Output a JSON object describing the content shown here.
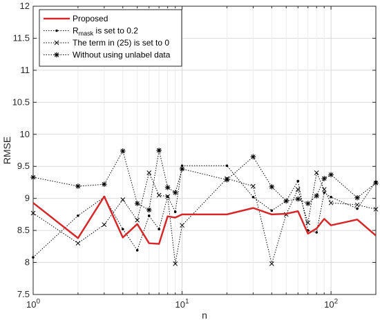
{
  "chart_data": {
    "type": "line",
    "xscale": "log",
    "xlim": [
      1,
      200
    ],
    "ylim": [
      7.5,
      12
    ],
    "xlabel": "n",
    "ylabel": "RMSE",
    "grid": true,
    "legend_position": "top-left",
    "xticks": [
      1,
      10,
      100
    ],
    "x_tick_labels": [
      {
        "base": "10",
        "exp": "0"
      },
      {
        "base": "10",
        "exp": "1"
      },
      {
        "base": "10",
        "exp": "2"
      }
    ],
    "yticks": [
      7.5,
      8,
      8.5,
      9,
      9.5,
      10,
      10.5,
      11,
      11.5,
      12
    ],
    "y_tick_labels": [
      "7.5",
      "8",
      "8.5",
      "9",
      "9.5",
      "10",
      "10.5",
      "11",
      "11.5",
      "12"
    ],
    "series": [
      {
        "name": "Proposed",
        "legend_parts": [
          {
            "text": "Proposed"
          }
        ],
        "color": "#d62728",
        "style": "solid",
        "marker": "none",
        "x": [
          1,
          2,
          3,
          4,
          5,
          6,
          7,
          8,
          9,
          10,
          20,
          30,
          40,
          50,
          60,
          70,
          80,
          90,
          100,
          150,
          200
        ],
        "y": [
          8.93,
          8.38,
          9.03,
          8.39,
          8.6,
          8.3,
          8.29,
          8.72,
          8.7,
          8.75,
          8.75,
          8.85,
          8.75,
          8.76,
          8.8,
          8.45,
          8.53,
          8.68,
          8.58,
          8.67,
          8.42
        ]
      },
      {
        "name": "R mask is set to 0.2",
        "legend_parts": [
          {
            "text": "R"
          },
          {
            "text": "mask",
            "sub": true
          },
          {
            "text": " is set to 0.2"
          }
        ],
        "color": "#000000",
        "style": "dotted",
        "marker": "dot",
        "x": [
          1,
          2,
          3,
          4,
          5,
          6,
          7,
          8,
          9,
          10,
          20,
          30,
          40,
          50,
          60,
          70,
          80,
          90,
          100,
          150,
          200
        ],
        "y": [
          8.08,
          8.73,
          9.02,
          8.52,
          8.19,
          8.73,
          8.52,
          9.03,
          8.79,
          9.51,
          9.51,
          9.02,
          8.81,
          8.96,
          9.27,
          8.5,
          8.47,
          9.09,
          9.02,
          8.84,
          9.26
        ]
      },
      {
        "name": "The term in (25) is set to 0",
        "legend_parts": [
          {
            "text": "The term in (25) is set to 0"
          }
        ],
        "color": "#000000",
        "style": "dotted",
        "marker": "x",
        "x": [
          1,
          2,
          3,
          4,
          5,
          6,
          7,
          8,
          9,
          10,
          20,
          30,
          40,
          50,
          60,
          70,
          80,
          90,
          100,
          150,
          200
        ],
        "y": [
          8.77,
          8.3,
          8.59,
          8.98,
          8.66,
          9.4,
          9.05,
          9.03,
          7.98,
          8.58,
          9.31,
          9.19,
          7.98,
          8.75,
          9.14,
          8.62,
          9.4,
          9.14,
          8.93,
          8.9,
          8.83
        ]
      },
      {
        "name": "Without using unlabel data",
        "legend_parts": [
          {
            "text": "Without using unlabel data"
          }
        ],
        "color": "#000000",
        "style": "dotted",
        "marker": "star",
        "x": [
          1,
          2,
          3,
          4,
          5,
          6,
          7,
          8,
          9,
          10,
          20,
          30,
          40,
          50,
          60,
          70,
          80,
          90,
          100,
          150,
          200
        ],
        "y": [
          9.33,
          9.19,
          9.22,
          9.74,
          8.92,
          8.82,
          9.75,
          9.17,
          9.09,
          9.46,
          9.29,
          9.65,
          9.18,
          8.96,
          8.99,
          8.92,
          9.04,
          9.31,
          9.37,
          9.01,
          9.24
        ]
      }
    ]
  }
}
